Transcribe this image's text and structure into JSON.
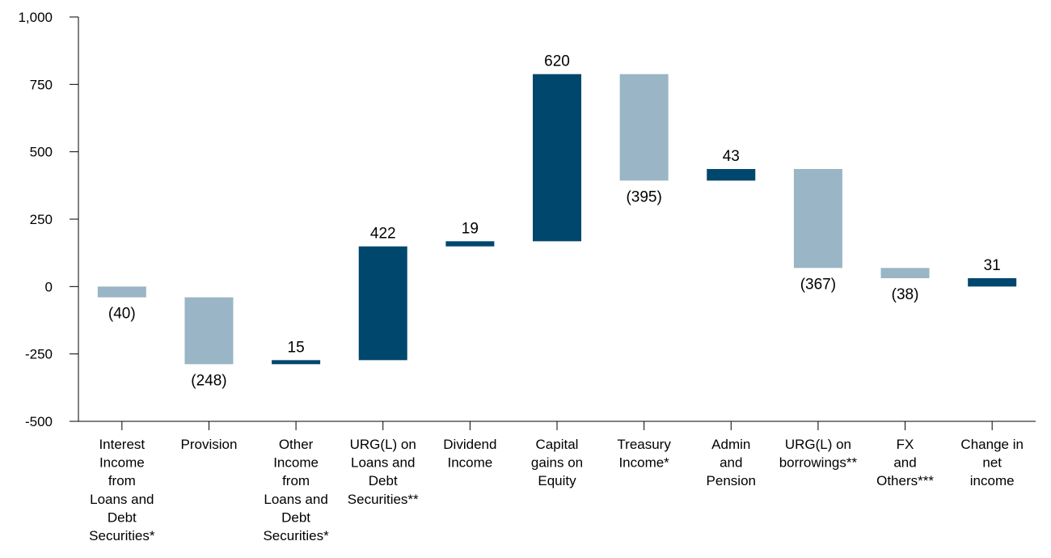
{
  "chart_data": {
    "type": "bar",
    "subtype": "waterfall",
    "title": "",
    "xlabel": "",
    "ylabel": "",
    "ylim": [
      -500,
      1000
    ],
    "yticks": [
      -500,
      -250,
      0,
      250,
      500,
      750,
      1000
    ],
    "ytick_labels": [
      "-500",
      "-250",
      "0",
      "250",
      "500",
      "750",
      "1,000"
    ],
    "grid": false,
    "legend": "none",
    "colors": {
      "increase": "#00476e",
      "decrease": "#9ab5c5"
    },
    "categories": [
      [
        "Interest",
        "Income",
        "from",
        "Loans and",
        "Debt",
        "Securities*"
      ],
      [
        "Provision"
      ],
      [
        "Other",
        "Income",
        "from",
        "Loans and",
        "Debt",
        "Securities*"
      ],
      [
        "URG(L) on",
        "Loans and",
        "Debt",
        "Securities**"
      ],
      [
        "Dividend",
        "Income"
      ],
      [
        "Capital",
        "gains on",
        "Equity"
      ],
      [
        "Treasury",
        "Income*"
      ],
      [
        "Admin",
        "and",
        "Pension"
      ],
      [
        "URG(L) on",
        "borrowings**"
      ],
      [
        "FX",
        "and",
        "Others***"
      ],
      [
        "Change in",
        "net",
        "income"
      ]
    ],
    "values": [
      -40,
      -248,
      15,
      422,
      19,
      620,
      -395,
      43,
      -367,
      -38,
      31
    ],
    "labels": [
      "(40)",
      "(248)",
      "15",
      "422",
      "19",
      "620",
      "(395)",
      "43",
      "(367)",
      "(38)",
      "31"
    ],
    "total_index": 10
  }
}
